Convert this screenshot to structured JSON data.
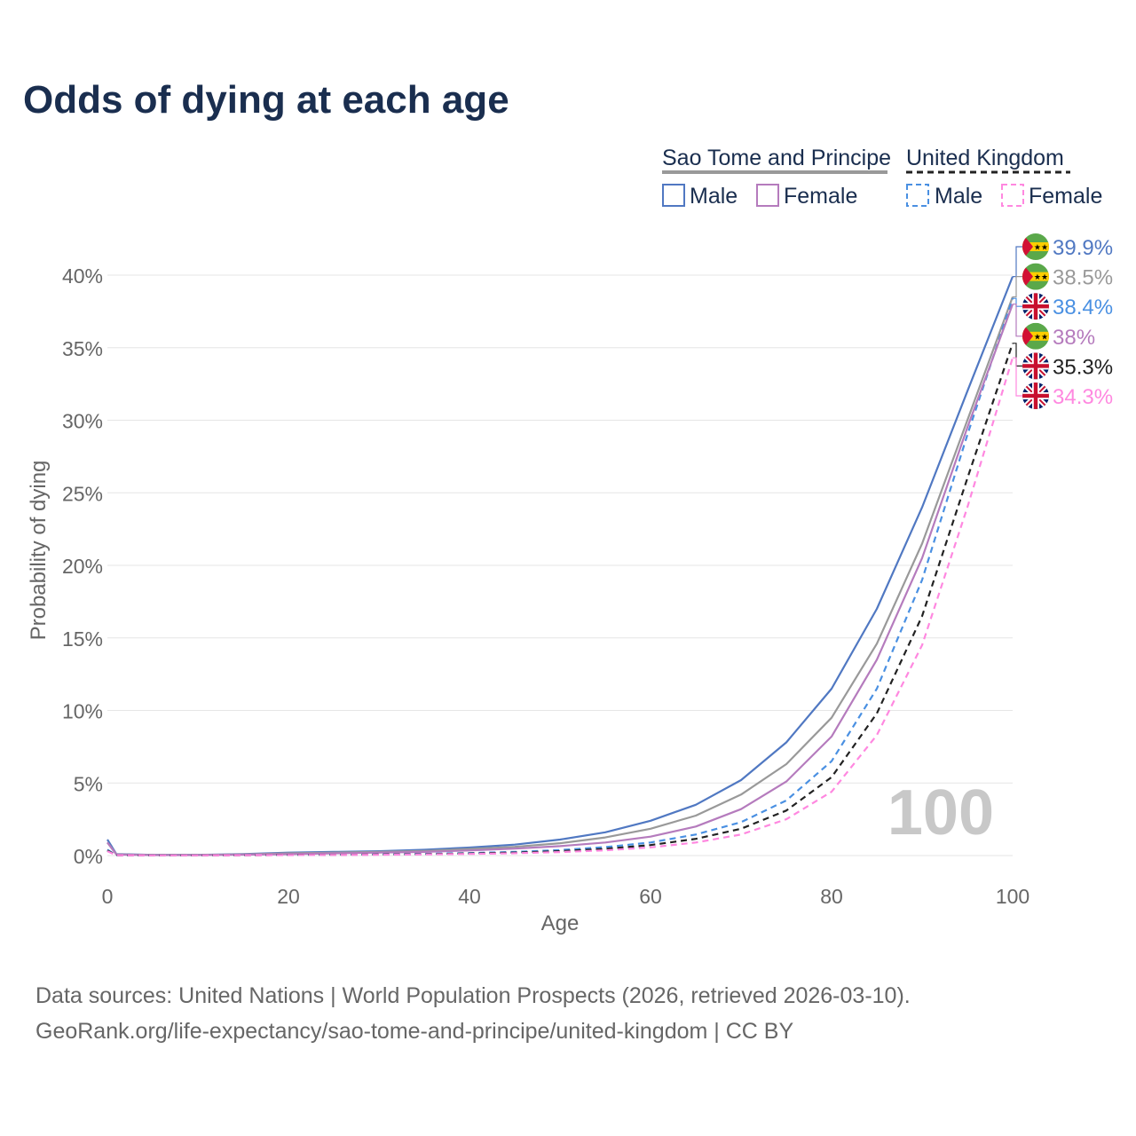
{
  "title": "Odds of dying at each age",
  "sources": {
    "line1": "Data sources: United Nations | World Population Prospects (2026, retrieved 2026-03-10).",
    "line2": "GeoRank.org/life-expectancy/sao-tome-and-principe/united-kingdom | CC BY"
  },
  "legend": {
    "groups": [
      {
        "name": "Sao Tome and Principe",
        "items": [
          "Male",
          "Female"
        ]
      },
      {
        "name": "United Kingdom",
        "items": [
          "Male",
          "Female"
        ]
      }
    ]
  },
  "watermark": "100",
  "chart_data": {
    "type": "line",
    "title": "Odds of dying at each age",
    "xlabel": "Age",
    "ylabel": "Probability of dying",
    "xlim": [
      0,
      100
    ],
    "ylim": [
      0,
      40
    ],
    "xticks": [
      0,
      20,
      40,
      60,
      80,
      100
    ],
    "yticks": [
      0,
      5,
      10,
      15,
      20,
      25,
      30,
      35,
      40
    ],
    "ytick_labels": [
      "0%",
      "5%",
      "10%",
      "15%",
      "20%",
      "25%",
      "30%",
      "35%",
      "40%"
    ],
    "grid": true,
    "x": [
      0,
      1,
      5,
      10,
      15,
      20,
      25,
      30,
      35,
      40,
      45,
      50,
      55,
      60,
      65,
      70,
      75,
      80,
      85,
      90,
      95,
      100
    ],
    "series": [
      {
        "name": "Sao Tome and Principe Male",
        "country": "Sao Tome and Principe",
        "sex": "Male",
        "color": "#5078c2",
        "dash": "none",
        "end_label": "39.9%",
        "values": [
          1.1,
          0.1,
          0.05,
          0.05,
          0.1,
          0.2,
          0.25,
          0.3,
          0.4,
          0.55,
          0.75,
          1.1,
          1.6,
          2.4,
          3.5,
          5.2,
          7.8,
          11.5,
          17.0,
          24.0,
          32.0,
          39.9
        ]
      },
      {
        "name": "Sao Tome and Principe Both",
        "country": "Sao Tome and Principe",
        "sex": "Both",
        "color": "#999999",
        "dash": "none",
        "end_label": "38.5%",
        "values": [
          0.9,
          0.08,
          0.04,
          0.04,
          0.08,
          0.15,
          0.2,
          0.25,
          0.32,
          0.45,
          0.6,
          0.85,
          1.25,
          1.85,
          2.75,
          4.2,
          6.3,
          9.5,
          14.6,
          21.5,
          30.0,
          38.5
        ]
      },
      {
        "name": "United Kingdom Male",
        "country": "United Kingdom",
        "sex": "Male",
        "color": "#4a90e2",
        "dash": "7,5",
        "end_label": "38.4%",
        "values": [
          0.4,
          0.02,
          0.01,
          0.01,
          0.03,
          0.05,
          0.07,
          0.09,
          0.12,
          0.17,
          0.25,
          0.38,
          0.58,
          0.9,
          1.45,
          2.3,
          3.8,
          6.5,
          11.5,
          19.0,
          29.0,
          38.4
        ]
      },
      {
        "name": "Sao Tome and Principe Female",
        "country": "Sao Tome and Principe",
        "sex": "Female",
        "color": "#b57bbd",
        "dash": "none",
        "end_label": "38%",
        "values": [
          0.9,
          0.07,
          0.03,
          0.03,
          0.06,
          0.1,
          0.15,
          0.2,
          0.25,
          0.35,
          0.48,
          0.65,
          0.9,
          1.3,
          2.0,
          3.2,
          5.1,
          8.2,
          13.5,
          20.5,
          29.5,
          38.0
        ]
      },
      {
        "name": "United Kingdom Both",
        "country": "United Kingdom",
        "sex": "Both",
        "color": "#222222",
        "dash": "7,5",
        "end_label": "35.3%",
        "values": [
          0.35,
          0.02,
          0.01,
          0.01,
          0.02,
          0.04,
          0.05,
          0.07,
          0.1,
          0.14,
          0.2,
          0.3,
          0.46,
          0.72,
          1.15,
          1.85,
          3.1,
          5.4,
          9.8,
          16.5,
          26.0,
          35.3
        ]
      },
      {
        "name": "United Kingdom Female",
        "country": "United Kingdom",
        "sex": "Female",
        "color": "#ff88e0",
        "dash": "7,5",
        "end_label": "34.3%",
        "values": [
          0.3,
          0.02,
          0.01,
          0.01,
          0.02,
          0.03,
          0.04,
          0.05,
          0.08,
          0.11,
          0.16,
          0.24,
          0.36,
          0.56,
          0.9,
          1.45,
          2.5,
          4.4,
          8.3,
          14.5,
          24.0,
          34.3
        ]
      }
    ]
  }
}
